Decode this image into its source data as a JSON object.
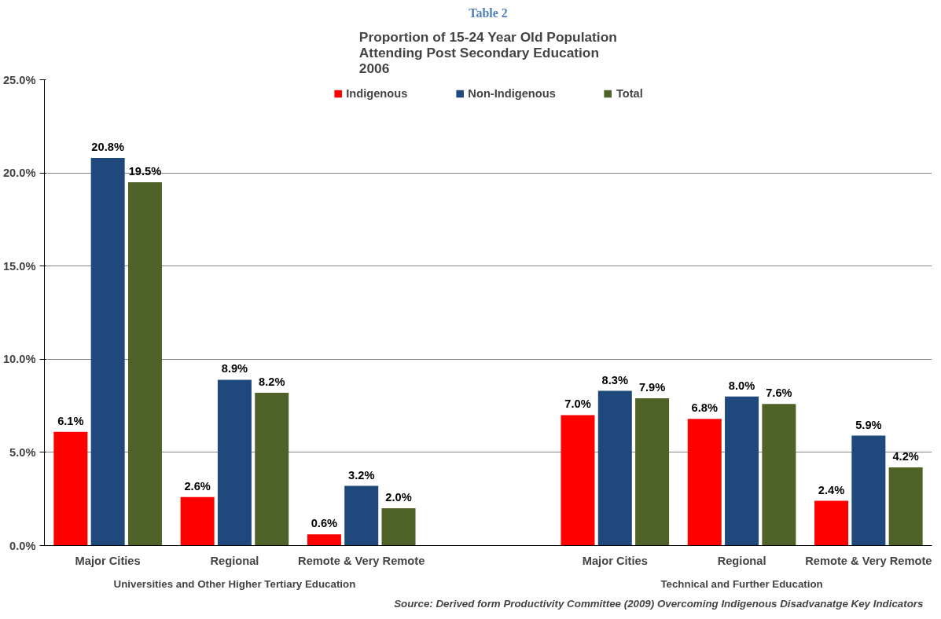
{
  "chart_data": {
    "type": "bar",
    "title": "Proportion of 15-24 Year Old Population\nAttending Post Secondary Education\n2006",
    "categories": [
      "Major Cities",
      "Regional",
      "Remote & Very Remote",
      null,
      "Major Cities",
      "Regional",
      "Remote & Very Remote"
    ],
    "series": [
      {
        "name": "Indigenous",
        "color": "#ff0000",
        "values": [
          6.1,
          2.6,
          0.6,
          null,
          7.0,
          6.8,
          2.4
        ],
        "value_labels": [
          "6.1%",
          "2.6%",
          "0.6%",
          null,
          "7.0%",
          "6.8%",
          "2.4%"
        ]
      },
      {
        "name": "Non-Indigenous",
        "color": "#1f497d",
        "values": [
          20.8,
          8.9,
          3.2,
          null,
          8.3,
          8.0,
          5.9
        ],
        "value_labels": [
          "20.8%",
          "8.9%",
          "3.2%",
          null,
          "8.3%",
          "8.0%",
          "5.9%"
        ]
      },
      {
        "name": "Total",
        "color": "#4f6228",
        "values": [
          19.5,
          8.2,
          2.0,
          null,
          7.9,
          7.6,
          4.2
        ],
        "value_labels": [
          "19.5%",
          "8.2%",
          "2.0%",
          null,
          "7.9%",
          "7.6%",
          "4.2%"
        ]
      }
    ],
    "ylim": [
      0,
      25
    ],
    "yticks": [
      {
        "value": 0,
        "label": "0.0%"
      },
      {
        "value": 5,
        "label": "5.0%"
      },
      {
        "value": 10,
        "label": "10.0%"
      },
      {
        "value": 15,
        "label": "15.0%"
      },
      {
        "value": 20,
        "label": "20.0%"
      },
      {
        "value": 25,
        "label": "25.0%"
      }
    ],
    "grid": "y",
    "legend": "top",
    "annotations": [
      "Table 2",
      "Universities and Other Higher Tertiary Education",
      "Technical and Further Education",
      "Source:  Derived form Productivity Committee (2009)  Overcoming Indigenous Disadvanatge  Key Indicators"
    ]
  }
}
